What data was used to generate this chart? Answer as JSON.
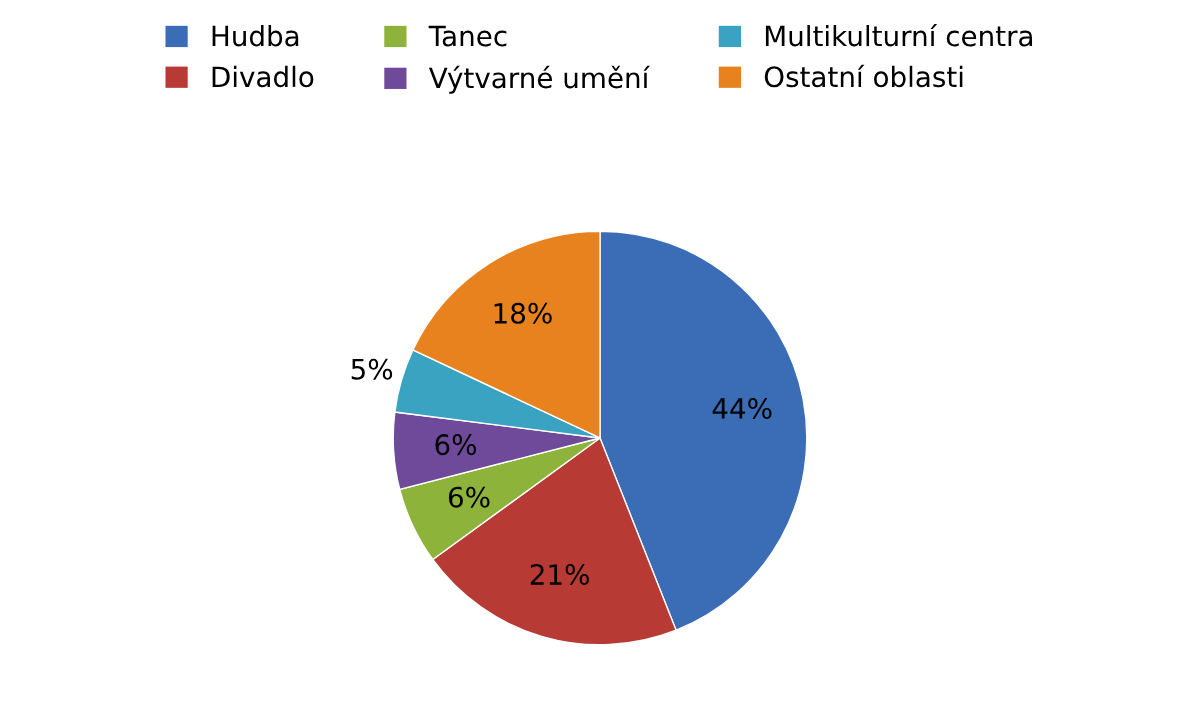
{
  "chart_data": {
    "type": "pie",
    "categories": [
      "Hudba",
      "Divadlo",
      "Tanec",
      "Výtvarné umění",
      "Multikulturní centra",
      "Ostatní oblasti"
    ],
    "values": [
      44,
      21,
      6,
      6,
      5,
      18
    ],
    "colors": [
      "#3a6db5",
      "#b83a35",
      "#8db33a",
      "#6f4a9a",
      "#3aa3c2",
      "#e8821f"
    ],
    "value_labels": [
      "44%",
      "21%",
      "6%",
      "6%",
      "5%",
      "18%"
    ],
    "legend": "top"
  }
}
